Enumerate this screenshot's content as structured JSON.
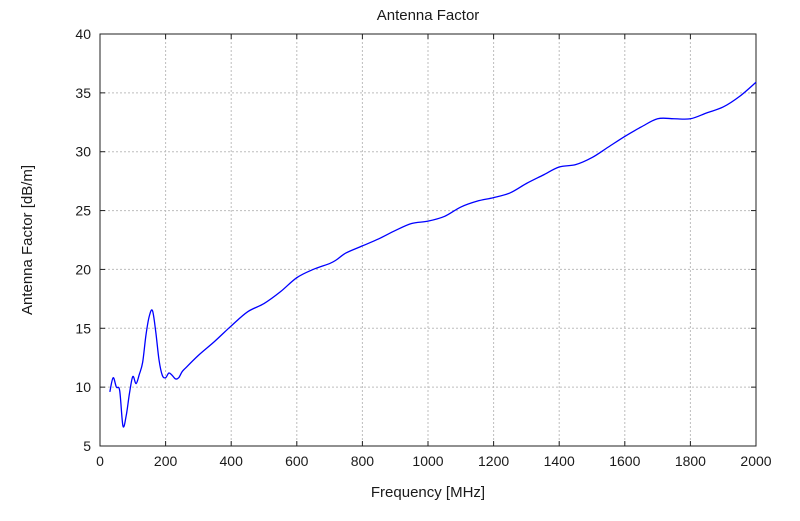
{
  "chart_data": {
    "type": "line",
    "title": "Antenna Factor",
    "xlabel": "Frequency [MHz]",
    "ylabel": "Antenna Factor [dB/m]",
    "xlim": [
      0,
      2000
    ],
    "ylim": [
      5,
      40
    ],
    "xticks": [
      0,
      200,
      400,
      600,
      800,
      1000,
      1200,
      1400,
      1600,
      1800,
      2000
    ],
    "yticks": [
      5,
      10,
      15,
      20,
      25,
      30,
      35,
      40
    ],
    "grid": true,
    "line_color": "#0000ff",
    "series": [
      {
        "x": [
          30,
          40,
          50,
          60,
          70,
          80,
          90,
          100,
          110,
          120,
          130,
          140,
          150,
          160,
          170,
          180,
          190,
          200,
          210,
          220,
          230,
          240,
          250,
          260,
          300,
          350,
          400,
          450,
          500,
          550,
          600,
          650,
          700,
          720,
          750,
          800,
          850,
          900,
          950,
          1000,
          1050,
          1100,
          1150,
          1200,
          1250,
          1300,
          1350,
          1400,
          1450,
          1500,
          1550,
          1600,
          1650,
          1700,
          1750,
          1800,
          1850,
          1900,
          1950,
          2000
        ],
        "y": [
          9.6,
          10.8,
          10.0,
          9.7,
          6.7,
          7.6,
          9.5,
          10.9,
          10.3,
          11.1,
          12.1,
          14.4,
          16.0,
          16.5,
          14.7,
          12.3,
          11.0,
          10.8,
          11.2,
          11.0,
          10.7,
          10.8,
          11.3,
          11.6,
          12.7,
          13.9,
          15.2,
          16.4,
          17.1,
          18.1,
          19.3,
          20.0,
          20.5,
          20.8,
          21.4,
          22.0,
          22.6,
          23.3,
          23.9,
          24.1,
          24.5,
          25.3,
          25.8,
          26.1,
          26.5,
          27.3,
          28.0,
          28.7,
          28.9,
          29.5,
          30.4,
          31.3,
          32.1,
          32.8,
          32.8,
          32.8,
          33.3,
          33.8,
          34.7,
          35.9
        ]
      }
    ]
  }
}
